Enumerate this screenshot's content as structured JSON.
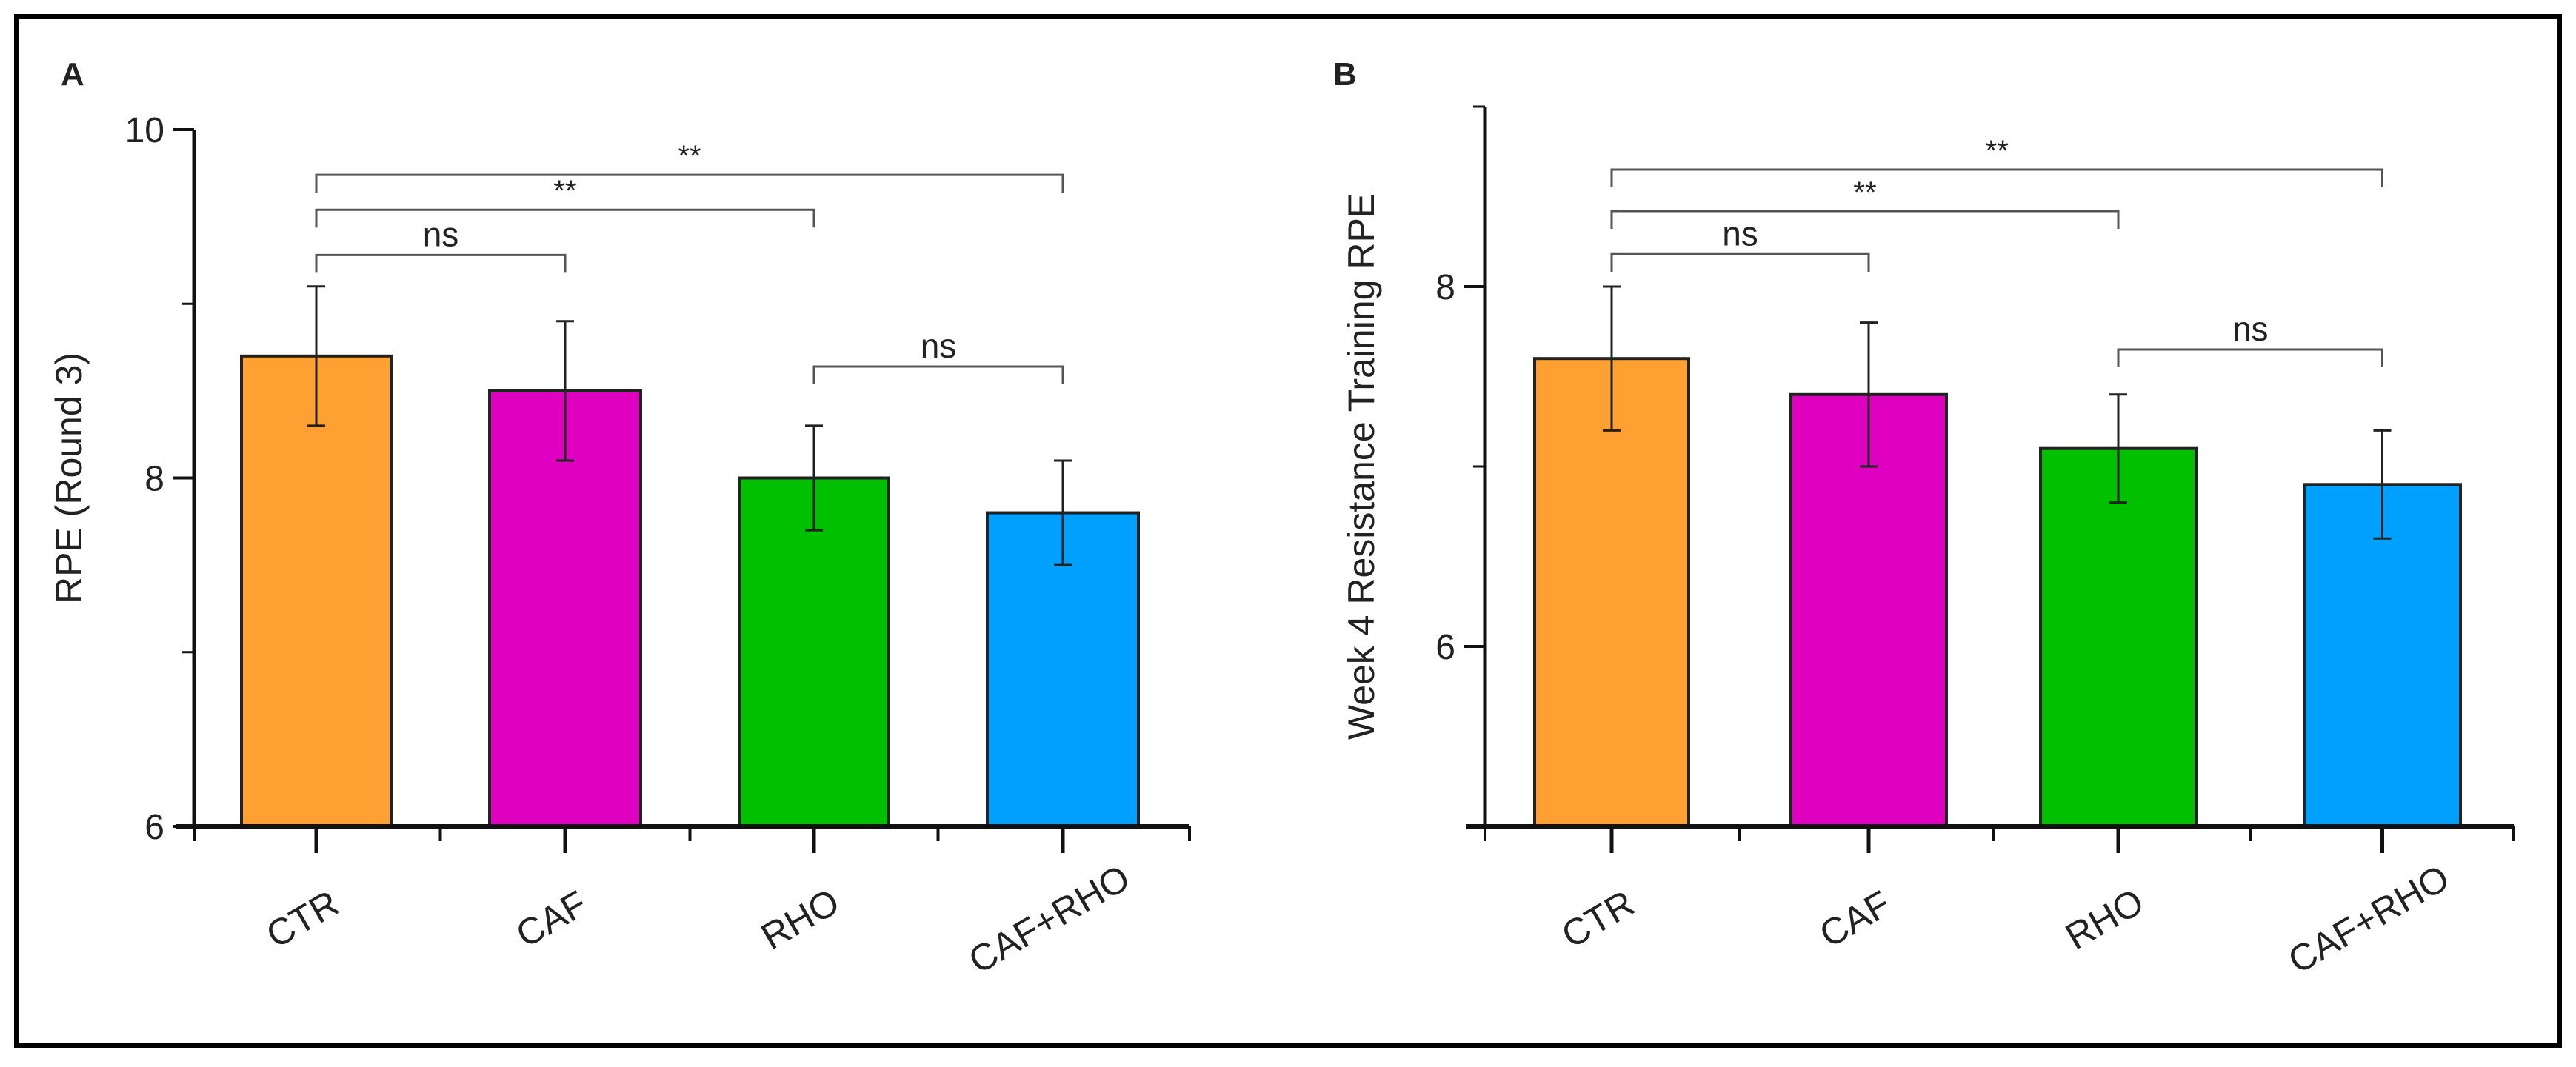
{
  "colors": {
    "CTR": "#FFA033",
    "CAF": "#E000C0",
    "RHO": "#00C000",
    "CAF+RHO": "#00A0FF"
  },
  "chart_data": [
    {
      "type": "bar",
      "panel": "A",
      "title": "",
      "xlabel": "",
      "ylabel": "RPE (Round 3)",
      "categories": [
        "CTR",
        "CAF",
        "RHO",
        "CAF+RHO"
      ],
      "values": [
        8.7,
        8.5,
        8.0,
        7.8
      ],
      "errors": [
        0.4,
        0.4,
        0.3,
        0.3
      ],
      "ylim": [
        6,
        10
      ],
      "yticks": [
        6,
        8,
        10
      ],
      "minor_yticks": [
        7,
        9
      ],
      "grid": false,
      "significance": [
        {
          "from": "CTR",
          "to": "CAF+RHO",
          "label": "**",
          "level": 9.74
        },
        {
          "from": "CTR",
          "to": "RHO",
          "label": "**",
          "level": 9.54
        },
        {
          "from": "CTR",
          "to": "CAF",
          "label": "ns",
          "level": 9.28
        },
        {
          "from": "RHO",
          "to": "CAF+RHO",
          "label": "ns",
          "level": 8.64
        }
      ]
    },
    {
      "type": "bar",
      "panel": "B",
      "title": "",
      "xlabel": "",
      "ylabel": "Week 4 Resistance Training RPE",
      "categories": [
        "CTR",
        "CAF",
        "RHO",
        "CAF+RHO"
      ],
      "values": [
        7.6,
        7.4,
        7.1,
        6.9
      ],
      "errors": [
        0.4,
        0.4,
        0.3,
        0.3
      ],
      "ylim": [
        5,
        9
      ],
      "yticks": [
        6,
        8
      ],
      "minor_yticks": [
        5,
        7,
        9
      ],
      "grid": false,
      "significance": [
        {
          "from": "CTR",
          "to": "CAF+RHO",
          "label": "**",
          "level": 8.65
        },
        {
          "from": "CTR",
          "to": "RHO",
          "label": "**",
          "level": 8.42
        },
        {
          "from": "CTR",
          "to": "CAF",
          "label": "ns",
          "level": 8.18
        },
        {
          "from": "RHO",
          "to": "CAF+RHO",
          "label": "ns",
          "level": 7.65
        }
      ]
    }
  ]
}
